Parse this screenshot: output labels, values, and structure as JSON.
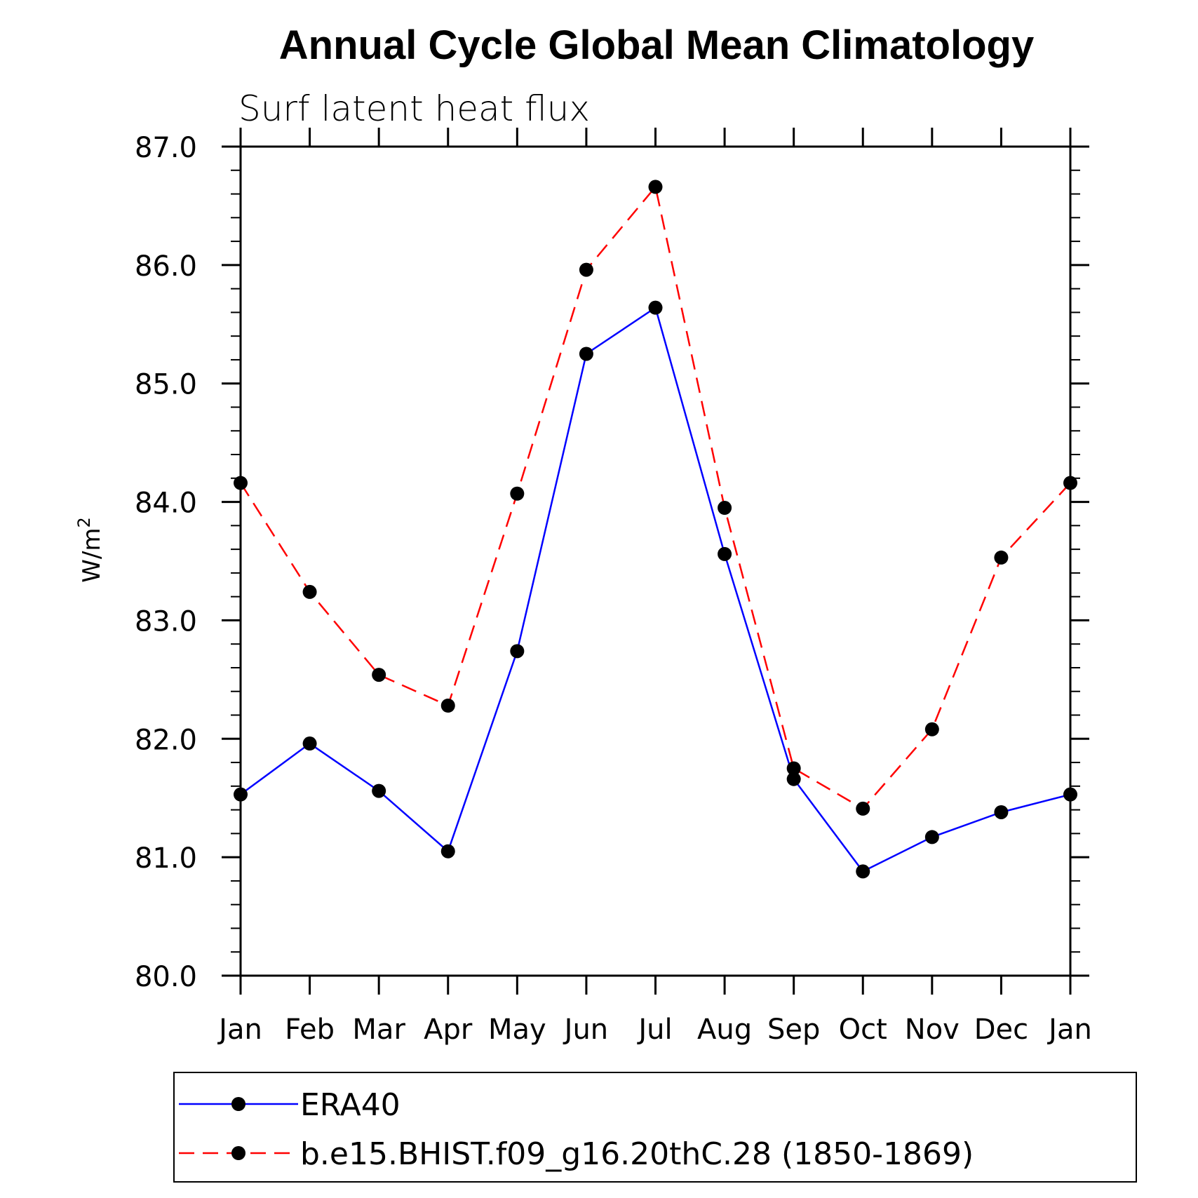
{
  "chart_data": {
    "type": "line",
    "title": "Annual Cycle Global Mean Climatology",
    "subtitle": "Surf latent heat flux",
    "ylabel_base": "W/m",
    "ylabel_sup": "2",
    "ylim": [
      80.0,
      87.0
    ],
    "y_ticks": [
      "80.0",
      "81.0",
      "82.0",
      "83.0",
      "84.0",
      "85.0",
      "86.0",
      "87.0"
    ],
    "categories": [
      "Jan",
      "Feb",
      "Mar",
      "Apr",
      "May",
      "Jun",
      "Jul",
      "Aug",
      "Sep",
      "Oct",
      "Nov",
      "Dec",
      "Jan"
    ],
    "series": [
      {
        "name": "ERA40",
        "color": "#0000ff",
        "dash": "solid",
        "values": [
          81.53,
          81.96,
          81.56,
          81.05,
          82.74,
          85.25,
          85.64,
          83.56,
          81.66,
          80.88,
          81.17,
          81.38,
          81.53
        ]
      },
      {
        "name": "b.e15.BHIST.f09_g16.20thC.28 (1850-1869)",
        "color": "#ff0000",
        "dash": "dashed",
        "values": [
          84.16,
          83.24,
          82.54,
          82.28,
          84.07,
          85.96,
          86.66,
          83.95,
          81.75,
          81.41,
          82.08,
          83.53,
          84.16
        ]
      }
    ],
    "grid": false,
    "legend_position": "bottom"
  }
}
